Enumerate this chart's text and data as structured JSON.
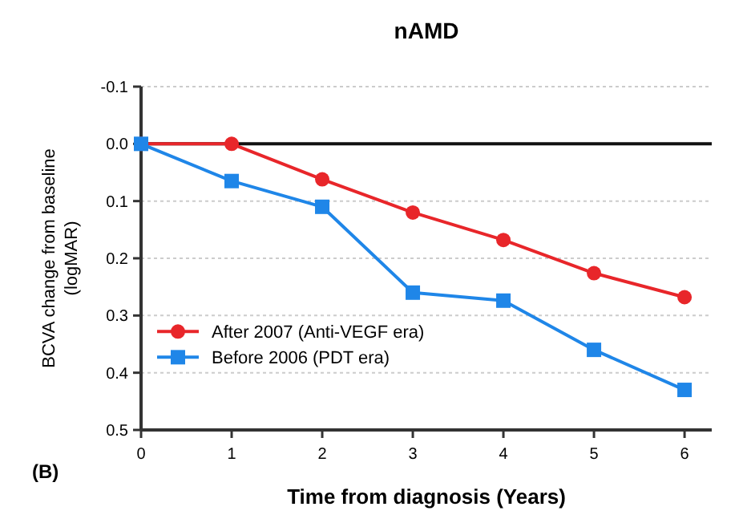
{
  "chart_data": {
    "type": "line",
    "title": "nAMD",
    "xlabel": "Time from diagnosis (Years)",
    "ylabel": "BCVA change from baseline (logMAR)",
    "x": [
      0,
      1,
      2,
      3,
      4,
      5,
      6
    ],
    "series": [
      {
        "name": "After 2007 (Anti-VEGF era)",
        "color": "#e8262a",
        "marker": "circle",
        "values": [
          0,
          0,
          0.062,
          0.12,
          0.168,
          0.226,
          0.268
        ]
      },
      {
        "name": "Before 2006 (PDT era)",
        "color": "#1f86e8",
        "marker": "square",
        "values": [
          0,
          0.065,
          0.11,
          0.26,
          0.274,
          0.36,
          0.43
        ]
      }
    ],
    "xlim": [
      0,
      6.3
    ],
    "xticks": [
      0,
      1,
      2,
      3,
      4,
      5,
      6
    ],
    "ylim": [
      0.5,
      -0.1
    ],
    "yticks": [
      {
        "value": -0.1,
        "label": "-0.1"
      },
      {
        "value": 0,
        "label": "0.0"
      },
      0.1,
      0.2,
      0.3,
      0.4,
      0.5
    ],
    "grid": "y",
    "legend": "bottom left",
    "line_style": "solid",
    "ref_lines": [
      {
        "axis": "y",
        "value": 0,
        "label": null,
        "color": "#111111"
      }
    ],
    "annotations": [
      "(B)"
    ]
  }
}
